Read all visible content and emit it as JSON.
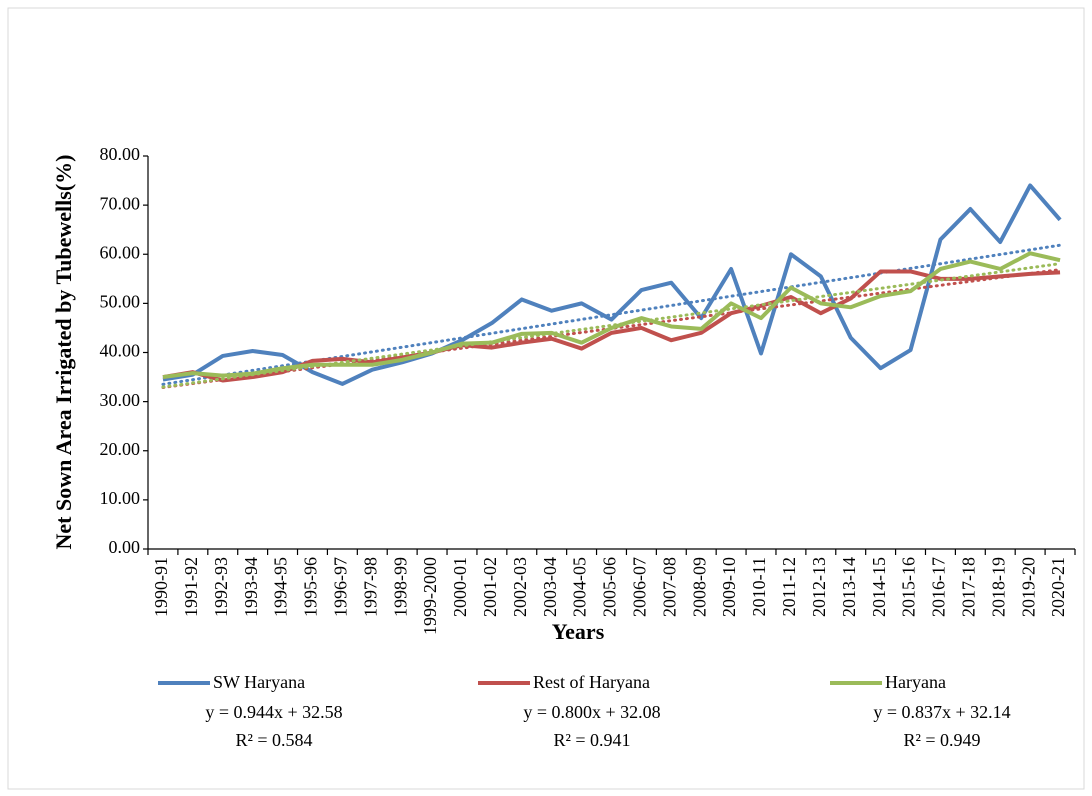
{
  "chart_data": {
    "type": "line",
    "y_label": "Net Sown Area Irrigated by Tubewells(%)",
    "x_label": "Years",
    "categories": [
      "1990-91",
      "1991-92",
      "1992-93",
      "1993-94",
      "1994-95",
      "1995-96",
      "1996-97",
      "1997-98",
      "1998-99",
      "1999-2000",
      "2000-01",
      "2001-02",
      "2002-03",
      "2003-04",
      "2004-05",
      "2005-06",
      "2006-07",
      "2007-08",
      "2008-09",
      "2009-10",
      "2010-11",
      "2011-12",
      "2012-13",
      "2013-14",
      "2014-15",
      "2015-16",
      "2016-17",
      "2017-18",
      "2018-19",
      "2019-20",
      "2020-21"
    ],
    "series": [
      {
        "name": "SW Haryana",
        "color": "#4f81bd",
        "values": [
          34.5,
          35.5,
          39.3,
          40.3,
          39.5,
          36,
          33.6,
          36.5,
          38,
          39.8,
          42.5,
          46,
          50.8,
          48.5,
          50,
          46.7,
          52.7,
          54.2,
          47,
          57,
          39.8,
          60,
          55.5,
          43,
          36.8,
          40.5,
          63,
          69.2,
          62.5,
          74,
          67
        ],
        "trendline": {
          "slope": 0.944,
          "intercept": 32.58,
          "label": "y = 0.944x + 32.58"
        },
        "r2": {
          "value": 0.584,
          "label": "R² = 0.584"
        }
      },
      {
        "name": "Rest of Haryana",
        "color": "#c0504d",
        "values": [
          35,
          36,
          34.3,
          35,
          36,
          38.3,
          38.7,
          38,
          39,
          40,
          41.5,
          41,
          42,
          42.8,
          40.8,
          44,
          45,
          42.5,
          44,
          48,
          49.5,
          51.3,
          48,
          51,
          56.5,
          56.5,
          55,
          55,
          55.5,
          56,
          56.3
        ],
        "trendline": {
          "slope": 0.8,
          "intercept": 32.08,
          "label": "y = 0.800x + 32.08"
        },
        "r2": {
          "value": 0.941,
          "label": "R² = 0.941"
        }
      },
      {
        "name": "Haryana",
        "color": "#9bbb59",
        "values": [
          35,
          35.8,
          35.3,
          35.7,
          36.8,
          37.5,
          37.5,
          37.5,
          38.5,
          40,
          41.8,
          42,
          43.8,
          44,
          42,
          45,
          47,
          45.3,
          44.8,
          50,
          47,
          53.2,
          50,
          49.2,
          51.5,
          52.5,
          57,
          58.5,
          57,
          60.2,
          58.8
        ],
        "trendline": {
          "slope": 0.837,
          "intercept": 32.14,
          "label": "y = 0.837x + 32.14"
        },
        "r2": {
          "value": 0.949,
          "label": "R² = 0.949"
        }
      }
    ],
    "ylim": [
      0,
      80
    ],
    "yticks": [
      {
        "value": 0,
        "label": "0.00"
      },
      {
        "value": 10,
        "label": "10.00"
      },
      {
        "value": 20,
        "label": "20.00"
      },
      {
        "value": 30,
        "label": "30.00"
      },
      {
        "value": 40,
        "label": "40.00"
      },
      {
        "value": 50,
        "label": "50.00"
      },
      {
        "value": 60,
        "label": "60.00"
      },
      {
        "value": 70,
        "label": "70.00"
      },
      {
        "value": 80,
        "label": "80.00"
      }
    ],
    "grid": false,
    "legend": "bottom"
  }
}
